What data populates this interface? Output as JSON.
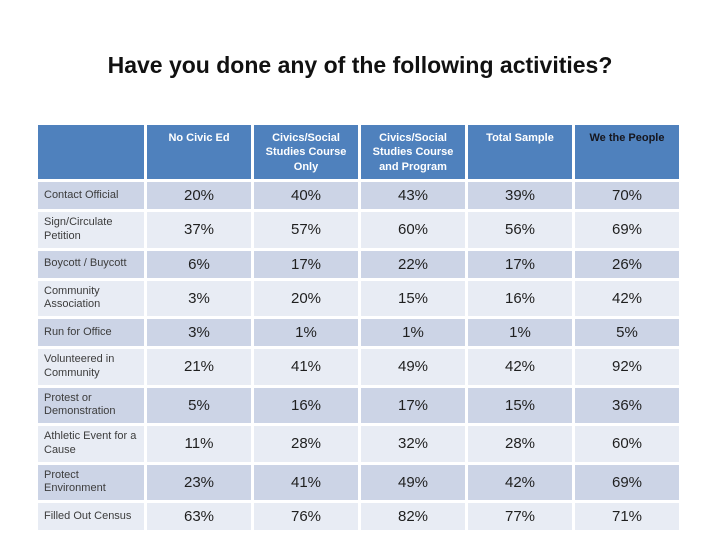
{
  "slide": {
    "title": "Have you done any of the following activities?"
  },
  "colors": {
    "header_bg": "#4F81BD",
    "header_text": "#FFFFFF",
    "header_text_we_the_people": "#16161E",
    "row_band_dark": "#CCD4E6",
    "row_band_light": "#E8ECF4",
    "grid_gap": "#FFFFFF",
    "title_text": "#111111"
  },
  "chart_data": {
    "type": "table",
    "title": "Have you done any of the following activities?",
    "columns": [
      "",
      "No Civic Ed",
      "Civics/Social Studies Course Only",
      "Civics/Social Studies Course and Program",
      "Total Sample",
      "We the People"
    ],
    "rows": [
      {
        "label": "Contact Official",
        "values": [
          "20%",
          "40%",
          "43%",
          "39%",
          "70%"
        ]
      },
      {
        "label": "Sign/Circulate Petition",
        "values": [
          "37%",
          "57%",
          "60%",
          "56%",
          "69%"
        ]
      },
      {
        "label": "Boycott / Buycott",
        "values": [
          "6%",
          "17%",
          "22%",
          "17%",
          "26%"
        ]
      },
      {
        "label": "Community Association",
        "values": [
          "3%",
          "20%",
          "15%",
          "16%",
          "42%"
        ]
      },
      {
        "label": "Run for Office",
        "values": [
          "3%",
          "1%",
          "1%",
          "1%",
          "5%"
        ]
      },
      {
        "label": "Volunteered in Community",
        "values": [
          "21%",
          "41%",
          "49%",
          "42%",
          "92%"
        ]
      },
      {
        "label": "Protest or Demonstration",
        "values": [
          "5%",
          "16%",
          "17%",
          "15%",
          "36%"
        ]
      },
      {
        "label": "Athletic Event for a Cause",
        "values": [
          "11%",
          "28%",
          "32%",
          "28%",
          "60%"
        ]
      },
      {
        "label": "Protect Environment",
        "values": [
          "23%",
          "41%",
          "49%",
          "42%",
          "69%"
        ]
      },
      {
        "label": "Filled Out Census",
        "values": [
          "63%",
          "76%",
          "82%",
          "77%",
          "71%"
        ]
      }
    ]
  }
}
